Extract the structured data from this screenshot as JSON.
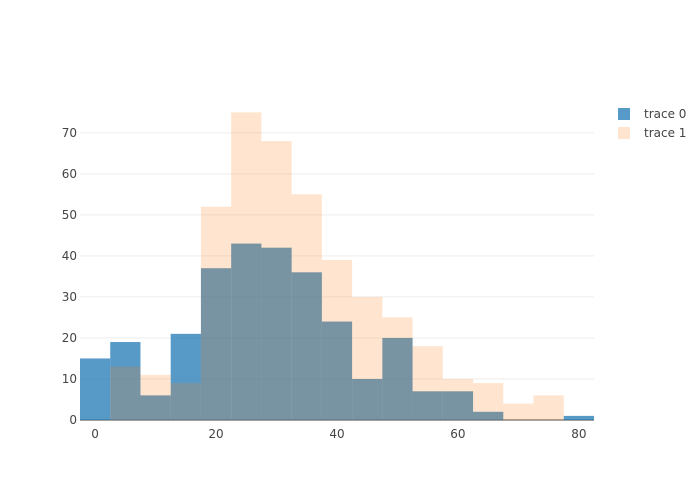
{
  "chart_data": {
    "type": "bar",
    "barmode": "overlay",
    "bin_size": 5,
    "bin_start": -2.5,
    "xlim": [
      -2.5,
      82.5
    ],
    "ylim": [
      0,
      78
    ],
    "x_ticks": [
      0,
      20,
      40,
      60,
      80
    ],
    "y_ticks": [
      0,
      10,
      20,
      30,
      40,
      50,
      60,
      70
    ],
    "grid": true,
    "legend_position": "top-right",
    "series": [
      {
        "name": "trace 0",
        "color": "#1f77b4",
        "opacity": 0.75,
        "values": [
          15,
          19,
          6,
          21,
          37,
          43,
          42,
          36,
          24,
          10,
          20,
          7,
          7,
          2,
          0,
          0,
          1
        ]
      },
      {
        "name": "trace 1",
        "color": "#ff7f0e",
        "opacity": 0.2,
        "values": [
          0,
          13,
          11,
          9,
          52,
          75,
          68,
          55,
          39,
          30,
          25,
          18,
          10,
          9,
          4,
          6,
          0
        ]
      }
    ]
  }
}
